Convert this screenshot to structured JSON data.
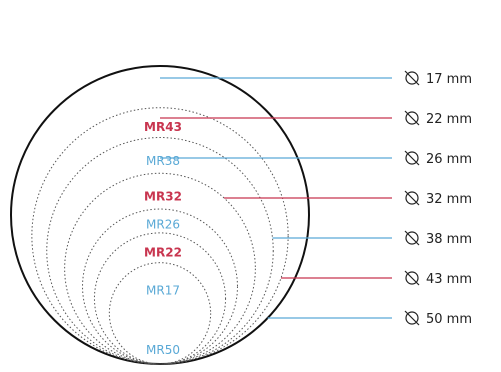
{
  "colors": {
    "blue": "#5aa9d6",
    "red": "#c8354f",
    "outline": "#111111",
    "dotted": "#555555",
    "text": "#222222"
  },
  "icon": "diameter-symbol-icon",
  "sizes": [
    {
      "model": "MR17",
      "diameter_mm": 17,
      "size_label": "17 mm",
      "color": "blue"
    },
    {
      "model": "MR22",
      "diameter_mm": 22,
      "size_label": "22 mm",
      "color": "red"
    },
    {
      "model": "MR26",
      "diameter_mm": 26,
      "size_label": "26 mm",
      "color": "blue"
    },
    {
      "model": "MR32",
      "diameter_mm": 32,
      "size_label": "32 mm",
      "color": "red"
    },
    {
      "model": "MR38",
      "diameter_mm": 38,
      "size_label": "38 mm",
      "color": "blue"
    },
    {
      "model": "MR43",
      "diameter_mm": 43,
      "size_label": "43 mm",
      "color": "red"
    },
    {
      "model": "MR50",
      "diameter_mm": 50,
      "size_label": "50 mm",
      "color": "blue"
    }
  ]
}
